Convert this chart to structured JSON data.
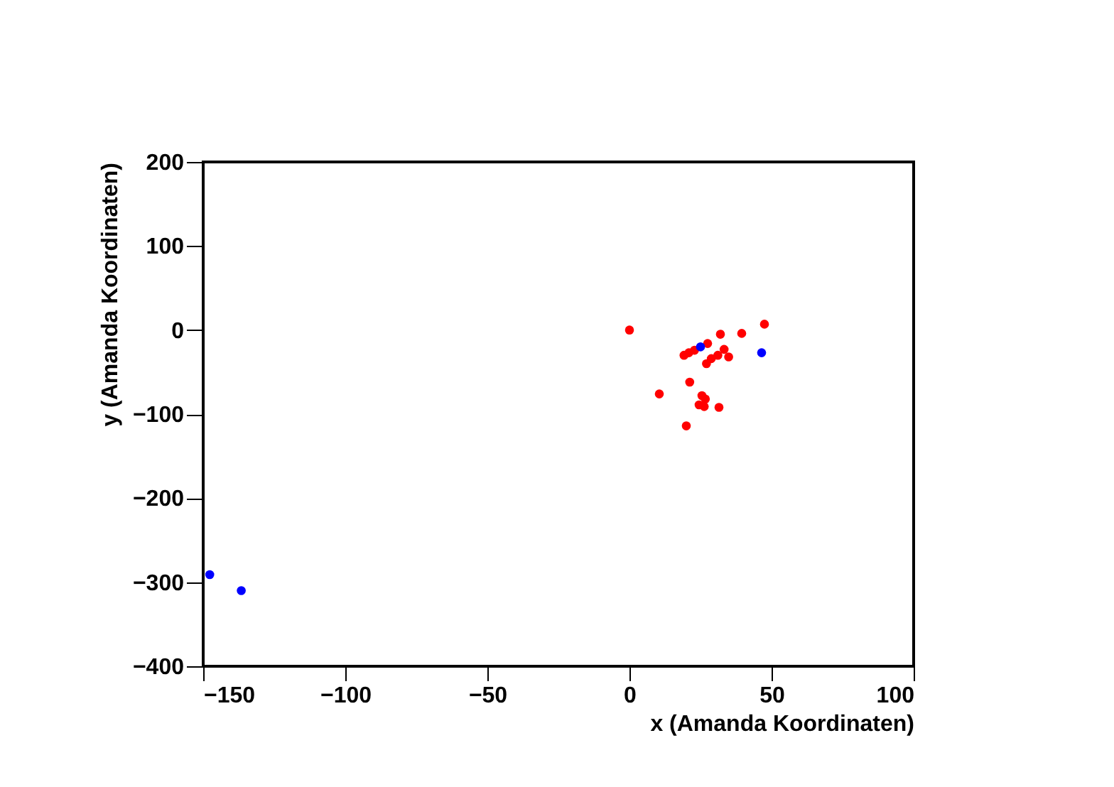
{
  "chart_data": {
    "type": "scatter",
    "xlabel": "x (Amanda Koordinaten)",
    "ylabel": "y (Amanda Koordinaten)",
    "xlim": [
      -150,
      100
    ],
    "ylim": [
      -400,
      200
    ],
    "xticks": [
      -150,
      -100,
      -50,
      0,
      50,
      100
    ],
    "yticks": [
      -400,
      -300,
      -200,
      -100,
      0,
      100,
      200
    ],
    "grid": false,
    "legend": false,
    "marker": "circle",
    "series": [
      {
        "color": "#ff0000",
        "x": [
          0,
          47.5,
          39.5,
          32,
          27.5,
          19.2,
          20.9,
          22.9,
          27.1,
          28.8,
          31.1,
          33.3,
          34.9,
          21.2,
          10.5,
          25.5,
          26.7,
          24.5,
          26.3,
          31.5,
          20
        ],
        "values": [
          0,
          7,
          -4,
          -5,
          -16,
          -30,
          -27,
          -24,
          -40,
          -34,
          -30,
          -23,
          -32,
          -62,
          -76,
          -78,
          -82,
          -89,
          -91,
          -92,
          -114
        ]
      },
      {
        "color": "#0000ff",
        "x": [
          25,
          46.5,
          -147.7,
          -136.6
        ],
        "values": [
          -20,
          -27,
          -291,
          -310
        ]
      }
    ]
  }
}
